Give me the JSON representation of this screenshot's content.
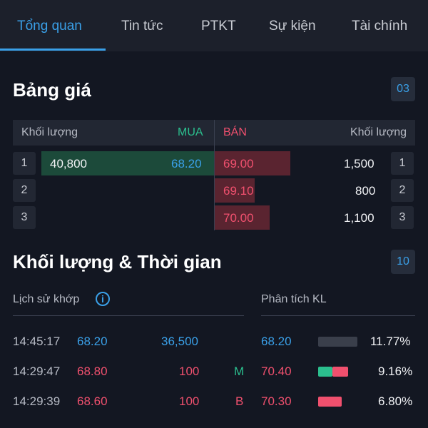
{
  "tabs": [
    "Tổng quan",
    "Tin tức",
    "PTKT",
    "Sự kiện",
    "Tài chính"
  ],
  "price_board": {
    "title": "Bảng giá",
    "badge": "03",
    "headers": {
      "buy_volume": "Khối lượng",
      "buy": "MUA",
      "sell": "BÁN",
      "sell_volume": "Khối lượng"
    },
    "rows": [
      {
        "index": "1",
        "buy_volume": "40,800",
        "buy_price": "68.20",
        "sell_price": "69.00",
        "sell_volume": "1,500",
        "sell_index": "1"
      },
      {
        "index": "2",
        "buy_volume": "",
        "buy_price": "",
        "sell_price": "69.10",
        "sell_volume": "800",
        "sell_index": "2"
      },
      {
        "index": "3",
        "buy_volume": "",
        "buy_price": "",
        "sell_price": "70.00",
        "sell_volume": "1,100",
        "sell_index": "3"
      }
    ]
  },
  "volume_time": {
    "title": "Khối lượng & Thời gian",
    "badge": "10",
    "history_label": "Lịch sử khớp",
    "analysis_label": "Phân tích KL",
    "trades": [
      {
        "time": "14:45:17",
        "price": "68.20",
        "volume": "36,500",
        "side": ""
      },
      {
        "time": "14:29:47",
        "price": "68.80",
        "volume": "100",
        "side": "M"
      },
      {
        "time": "14:29:39",
        "price": "68.60",
        "volume": "100",
        "side": "B"
      }
    ],
    "analysis": [
      {
        "price": "68.20",
        "percent": "11.77%"
      },
      {
        "price": "70.40",
        "percent": "9.16%"
      },
      {
        "price": "70.30",
        "percent": "6.80%"
      }
    ]
  },
  "colors": {
    "accent": "#3aa0e8",
    "buy": "#2bbf8e",
    "sell": "#f0506e"
  }
}
